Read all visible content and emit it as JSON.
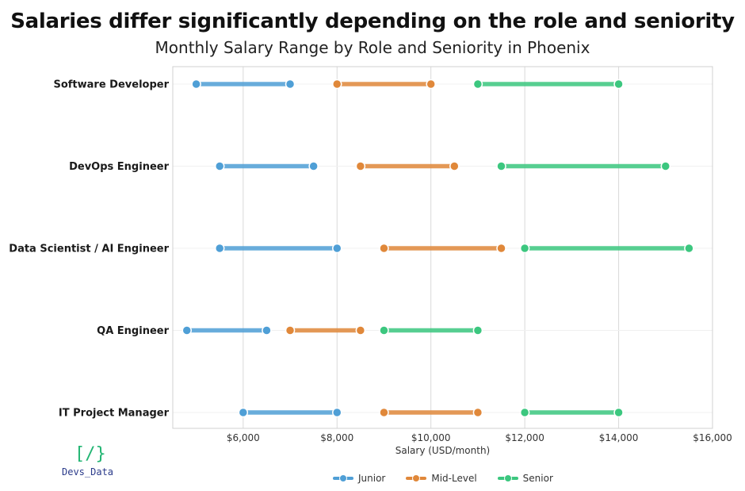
{
  "title": "Salaries differ significantly depending on the role and seniority",
  "subtitle": "Monthly Salary Range by Role and Seniority in Phoenix",
  "logo": {
    "mark": "[/}",
    "text": "Devs_Data"
  },
  "colors": {
    "junior": "#4f9fd6",
    "mid": "#e0883a",
    "senior": "#3cc77f"
  },
  "chart_data": {
    "type": "dumbbell",
    "xlabel": "Salary (USD/month)",
    "xlim": [
      4500,
      16000
    ],
    "xticks": [
      6000,
      8000,
      10000,
      12000,
      14000,
      16000
    ],
    "xtick_labels": [
      "$6,000",
      "$8,000",
      "$10,000",
      "$12,000",
      "$14,000",
      "$16,000"
    ],
    "categories": [
      "Software Developer",
      "DevOps Engineer",
      "Data Scientist / AI Engineer",
      "QA Engineer",
      "IT Project Manager"
    ],
    "series": [
      {
        "name": "Junior",
        "color": "#4f9fd6",
        "ranges": [
          [
            5000,
            7000
          ],
          [
            5500,
            7500
          ],
          [
            5500,
            8000
          ],
          [
            4800,
            6500
          ],
          [
            6000,
            8000
          ]
        ]
      },
      {
        "name": "Mid-Level",
        "color": "#e0883a",
        "ranges": [
          [
            8000,
            10000
          ],
          [
            8500,
            10500
          ],
          [
            9000,
            11500
          ],
          [
            7000,
            8500
          ],
          [
            9000,
            11000
          ]
        ]
      },
      {
        "name": "Senior",
        "color": "#3cc77f",
        "ranges": [
          [
            11000,
            14000
          ],
          [
            11500,
            15000
          ],
          [
            12000,
            15500
          ],
          [
            9000,
            11000
          ],
          [
            12000,
            14000
          ]
        ]
      }
    ],
    "grid": true,
    "legend_position": "bottom"
  }
}
